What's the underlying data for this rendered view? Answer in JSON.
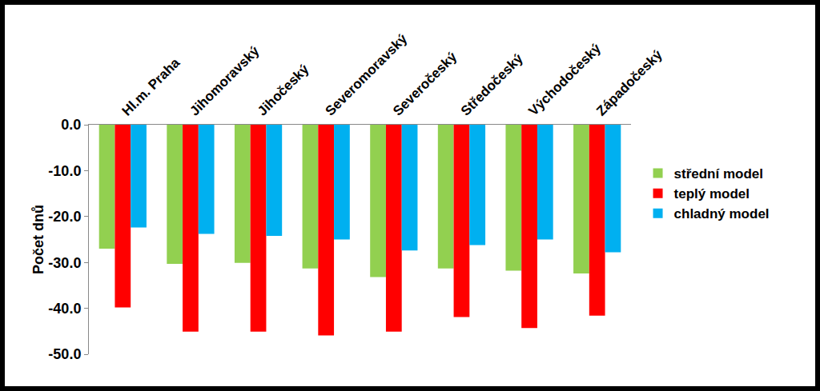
{
  "chart_data": {
    "type": "bar",
    "categories": [
      "Hl.m. Praha",
      "Jihomoravský",
      "Jihočeský",
      "Severomoravský",
      "Severočeský",
      "Středočeský",
      "Východočeský",
      "Západočeský"
    ],
    "series": [
      {
        "name": "střední model",
        "color": "#92d050",
        "values": [
          -27.0,
          -30.3,
          -30.1,
          -31.3,
          -33.2,
          -31.3,
          -31.8,
          -32.4
        ]
      },
      {
        "name": "teplý model",
        "color": "#ff0000",
        "values": [
          -39.8,
          -45.1,
          -45.1,
          -45.9,
          -45.1,
          -41.9,
          -44.3,
          -41.6
        ]
      },
      {
        "name": "chladný model",
        "color": "#00b0f0",
        "values": [
          -22.4,
          -23.8,
          -24.2,
          -25.0,
          -27.4,
          -26.2,
          -25.0,
          -27.8
        ]
      }
    ],
    "y_label": "Počet dnů",
    "ylim": [
      -50,
      0
    ],
    "yticks": [
      {
        "value": -50,
        "label": "-50.0"
      },
      {
        "value": -40,
        "label": "-40.0"
      },
      {
        "value": -30,
        "label": "-30.0"
      },
      {
        "value": -20,
        "label": "-20.0"
      },
      {
        "value": -10,
        "label": "-10.0"
      },
      {
        "value": 0,
        "label": "0.0"
      }
    ],
    "grid": false,
    "legend": "right"
  }
}
